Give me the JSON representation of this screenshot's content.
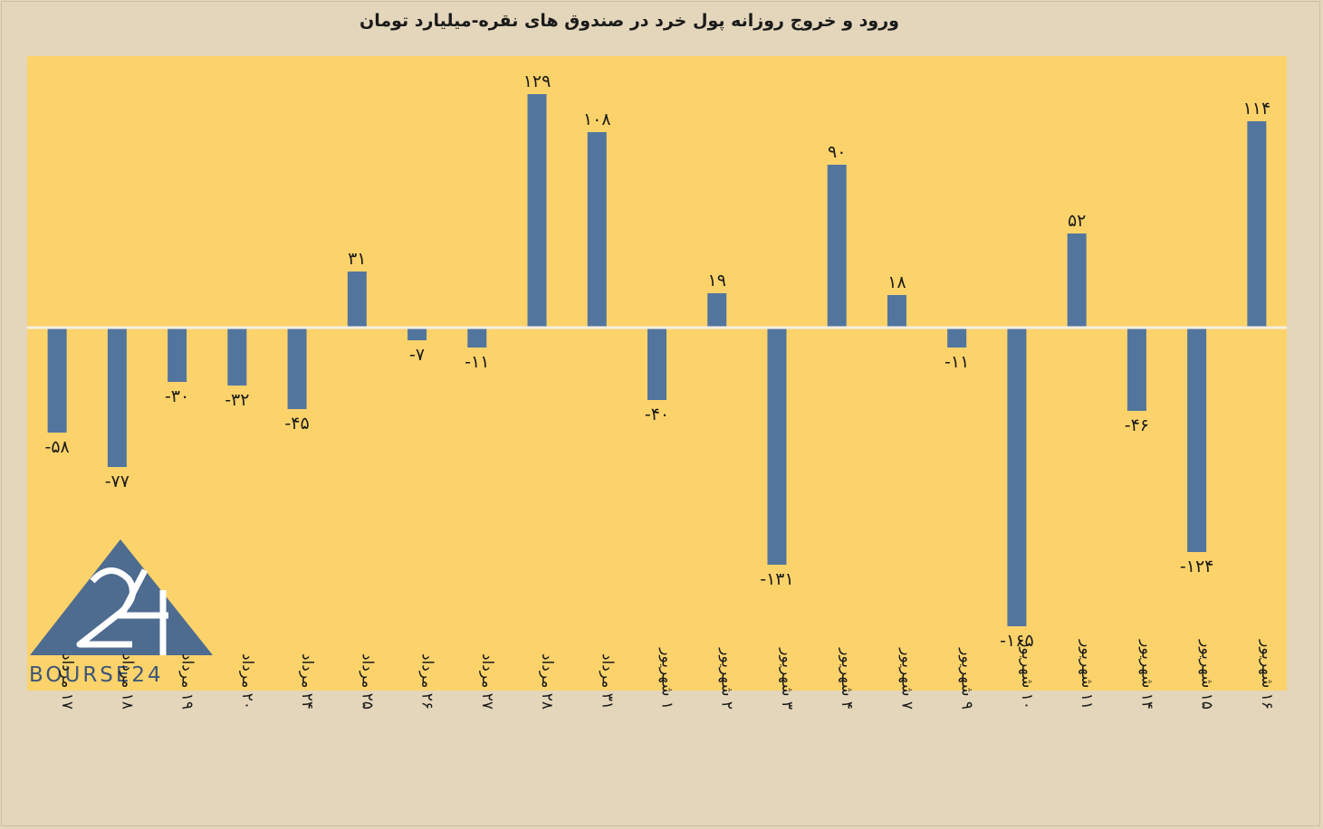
{
  "title": "ورود و خروج روزانه پول خرد در صندوق های نقره-میلیارد تومان",
  "logo": {
    "text": "BOURSE24",
    "mark": "24"
  },
  "colors": {
    "bar": "#52759e",
    "plot_bg": "#fcd36b",
    "page_bg": "#e3d6bb",
    "logo": "#4e6b90"
  },
  "chart_data": {
    "type": "bar",
    "title": "ورود و خروج روزانه پول خرد در صندوق های نقره-میلیارد تومان",
    "xlabel": "",
    "ylabel": "",
    "grid": false,
    "legend": "none",
    "ylim": [
      -180,
      160
    ],
    "categories": [
      "۱۷ مرداد",
      "۱۸ مرداد",
      "۱۹ مرداد",
      "۲۰ مرداد",
      "۲۴ مرداد",
      "۲۵ مرداد",
      "۲۶ مرداد",
      "۲۷ مرداد",
      "۲۸ مرداد",
      "۳۱ مرداد",
      "۱ شهریور",
      "۲ شهریور",
      "۳ شهریور",
      "۴ شهریور",
      "۷ شهریور",
      "۹ شهریور",
      "۱۰ شهریور",
      "۱۱ شهریور",
      "۱۴ شهریور",
      "۱۵ شهریور",
      "۱۶ شهریور"
    ],
    "values": [
      -58,
      -77,
      -30,
      -32,
      -45,
      31,
      -7,
      -11,
      129,
      108,
      -40,
      19,
      -131,
      90,
      18,
      -11,
      -165,
      52,
      -46,
      -124,
      114
    ],
    "value_labels": [
      "-۵۸",
      "-۷۷",
      "-۳۰",
      "-۳۲",
      "-۴۵",
      "۳۱",
      "-۷",
      "-۱۱",
      "۱۲۹",
      "۱۰۸",
      "-۴۰",
      "۱۹",
      "-۱۳۱",
      "۹۰",
      "۱۸",
      "-۱۱",
      "-۱۶۵",
      "۵۲",
      "-۴۶",
      "-۱۲۴",
      "۱۱۴"
    ]
  }
}
